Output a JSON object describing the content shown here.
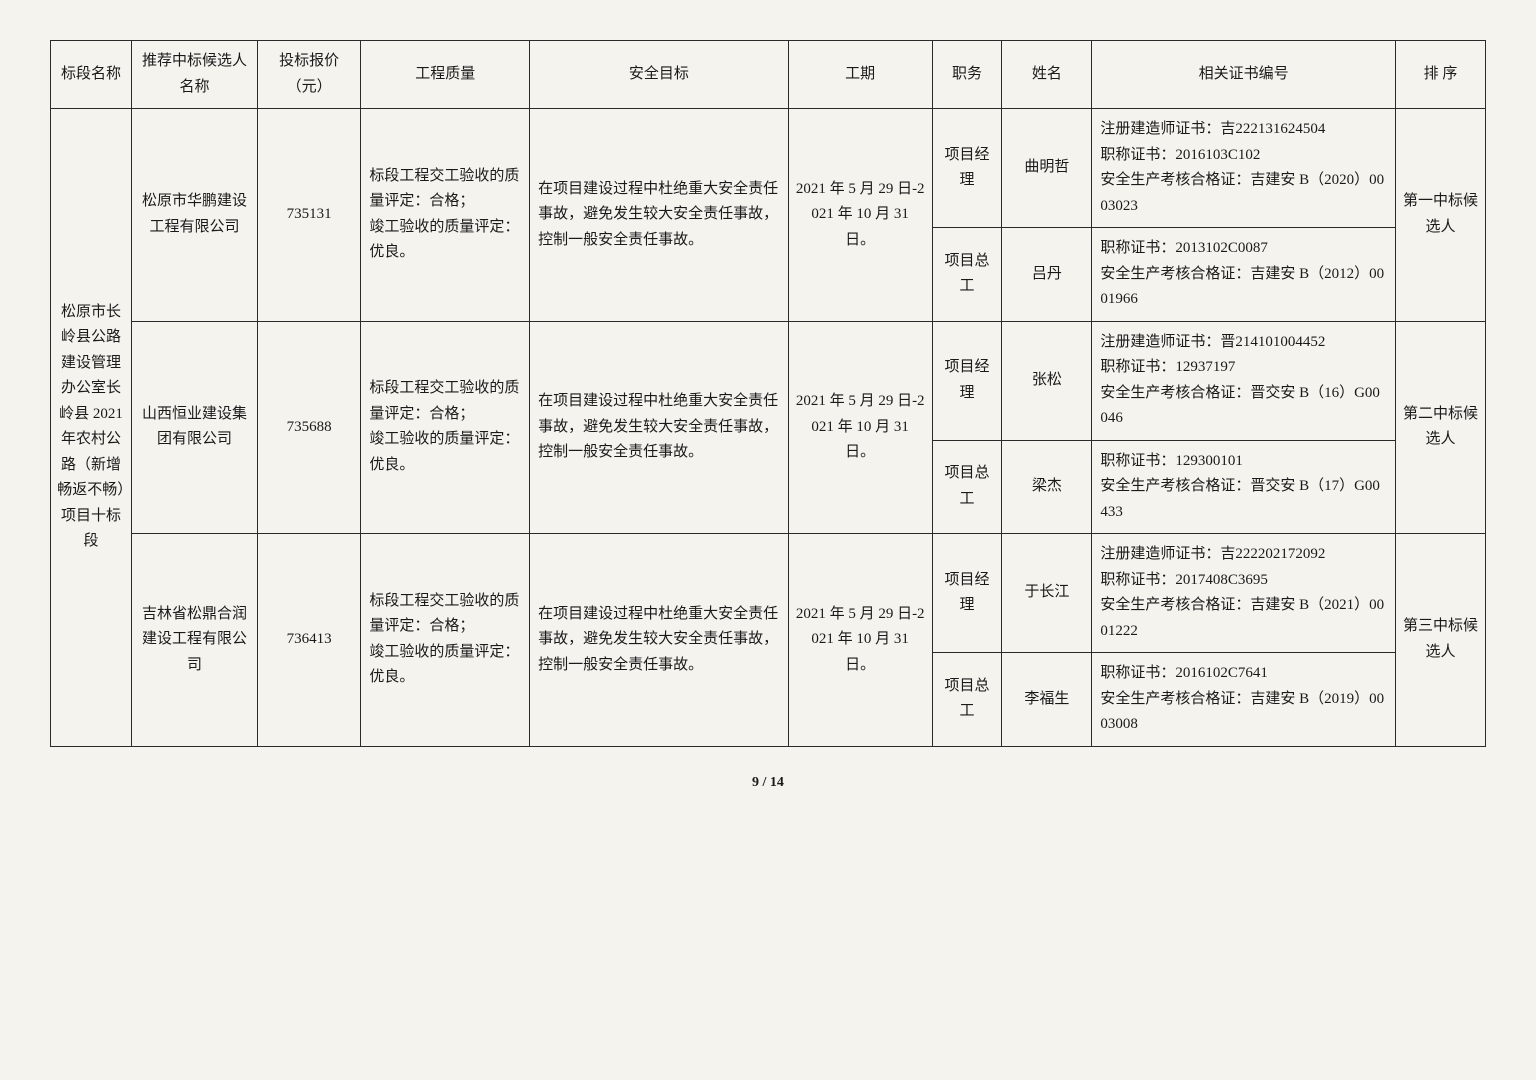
{
  "header": {
    "c1": "标段名称",
    "c2": "推荐中标候选人名称",
    "c3": "投标报价（元）",
    "c4": "工程质量",
    "c5": "安全目标",
    "c6": "工期",
    "c7": "职务",
    "c8": "姓名",
    "c9": "相关证书编号",
    "c10": "排  序"
  },
  "section_name": "松原市长岭县公路建设管理办公室长岭县 2021 年农村公路（新增畅返不畅）项目十标段",
  "bidders": [
    {
      "company": "松原市华鹏建设工程有限公司",
      "price": "735131",
      "quality": "标段工程交工验收的质量评定：合格；\n竣工验收的质量评定：优良。",
      "safety": "在项目建设过程中杜绝重大安全责任事故，避免发生较大安全责任事故，控制一般安全责任事故。",
      "period": "2021 年 5 月 29 日-2021 年 10 月 31 日。",
      "rank": "第一中标候选人",
      "people": [
        {
          "role": "项目经理",
          "name": "曲明哲",
          "cert": "注册建造师证书：吉222131624504\n职称证书：2016103C102\n安全生产考核合格证：吉建安 B（2020）0003023"
        },
        {
          "role": "项目总工",
          "name": "吕丹",
          "cert": "职称证书：2013102C0087\n安全生产考核合格证：吉建安 B（2012）0001966"
        }
      ]
    },
    {
      "company": "山西恒业建设集团有限公司",
      "price": "735688",
      "quality": "标段工程交工验收的质量评定：合格；\n竣工验收的质量评定：优良。",
      "safety": "在项目建设过程中杜绝重大安全责任事故，避免发生较大安全责任事故，控制一般安全责任事故。",
      "period": "2021 年 5 月 29 日-2021 年 10 月 31 日。",
      "rank": "第二中标候选人",
      "people": [
        {
          "role": "项目经理",
          "name": "张松",
          "cert": "注册建造师证书：晋214101004452\n职称证书：12937197\n安全生产考核合格证：晋交安 B（16）G00046"
        },
        {
          "role": "项目总工",
          "name": "梁杰",
          "cert": "职称证书：129300101\n安全生产考核合格证：晋交安 B（17）G00433"
        }
      ]
    },
    {
      "company": "吉林省松鼎合润建设工程有限公司",
      "price": "736413",
      "quality": "标段工程交工验收的质量评定：合格；\n竣工验收的质量评定：优良。",
      "safety": "在项目建设过程中杜绝重大安全责任事故，避免发生较大安全责任事故，控制一般安全责任事故。",
      "period": "2021 年 5 月 29 日-2021 年 10 月 31 日。",
      "rank": "第三中标候选人",
      "people": [
        {
          "role": "项目经理",
          "name": "于长江",
          "cert": "注册建造师证书：吉222202172092\n职称证书：2017408C3695\n安全生产考核合格证：吉建安 B（2021）0001222"
        },
        {
          "role": "项目总工",
          "name": "李福生",
          "cert": "职称证书：2016102C7641\n安全生产考核合格证：吉建安 B（2019）0003008"
        }
      ]
    }
  ],
  "page_number": "9 / 14"
}
